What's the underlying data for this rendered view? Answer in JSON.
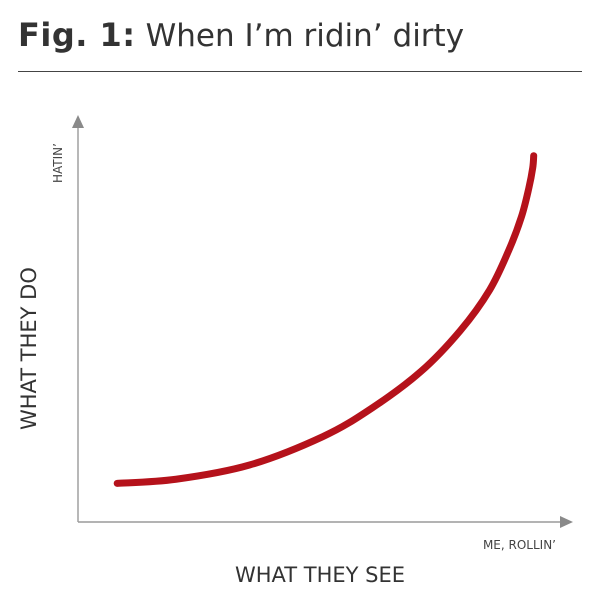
{
  "figure": {
    "label": "Fig. 1:",
    "title": "When I’m ridin’ dirty"
  },
  "chart_data": {
    "type": "line",
    "title": "When I’m ridin’ dirty",
    "xlabel": "WHAT THEY SEE",
    "ylabel": "WHAT THEY DO",
    "x_end_label": "ME, ROLLIN’",
    "y_end_label": "HATIN’",
    "xlim": [
      0,
      100
    ],
    "ylim": [
      0,
      100
    ],
    "grid": false,
    "legend": "none",
    "series": [
      {
        "color": "#b5121b",
        "x": [
          8,
          20,
          35,
          50,
          60,
          70,
          78,
          84,
          88,
          90.5,
          92,
          92.8,
          93
        ],
        "y": [
          9.5,
          10.5,
          14,
          21,
          28,
          37,
          47,
          57,
          67,
          75,
          82,
          87,
          90
        ]
      }
    ]
  }
}
